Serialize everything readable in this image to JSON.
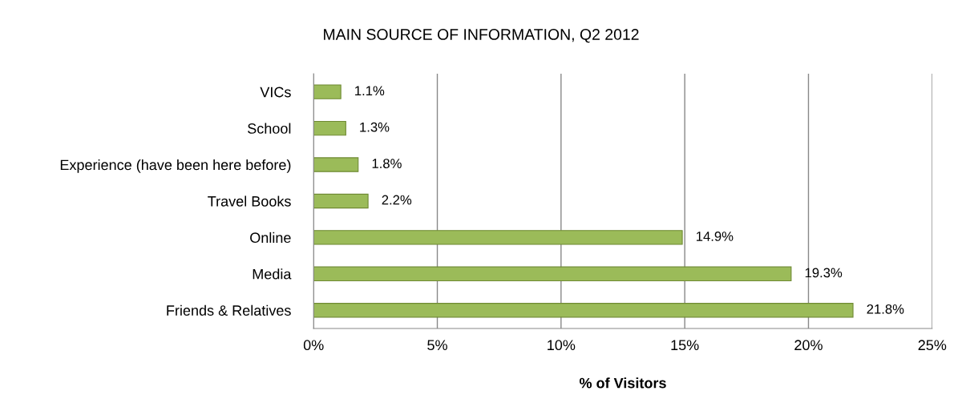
{
  "chart_data": {
    "type": "bar",
    "orientation": "horizontal",
    "title": "MAIN SOURCE OF INFORMATION, Q2 2012",
    "xlabel": "% of Visitors",
    "categories": [
      "VICs",
      "School",
      "Experience (have been here before)",
      "Travel Books",
      "Online",
      "Media",
      "Friends & Relatives"
    ],
    "values": [
      1.1,
      1.3,
      1.8,
      2.2,
      14.9,
      19.3,
      21.8
    ],
    "value_labels": [
      "1.1%",
      "1.3%",
      "1.8%",
      "2.2%",
      "14.9%",
      "19.3%",
      "21.8%"
    ],
    "color": "#9bbb59",
    "xlim": [
      0,
      25
    ],
    "xticks": [
      {
        "value": 0,
        "label": "0%"
      },
      {
        "value": 5,
        "label": "5%"
      },
      {
        "value": 10,
        "label": "10%"
      },
      {
        "value": 15,
        "label": "15%"
      },
      {
        "value": 20,
        "label": "20%"
      },
      {
        "value": 25,
        "label": "25%"
      }
    ],
    "grid": "x",
    "legend": false
  }
}
